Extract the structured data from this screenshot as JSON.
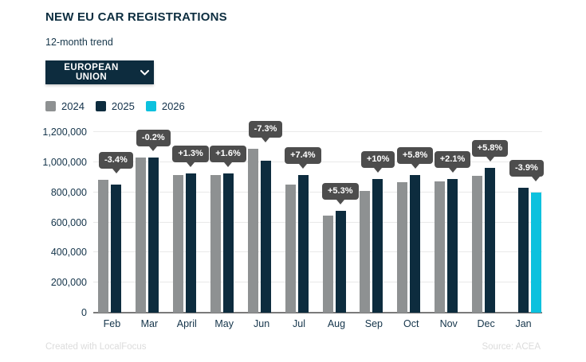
{
  "header": {
    "title": "NEW EU CAR REGISTRATIONS",
    "subtitle": "12-month trend",
    "region_selector": {
      "label": "EUROPEAN UNION",
      "icon": "chevron-down-icon"
    }
  },
  "legend": [
    {
      "label": "2024",
      "color": "#8e9192"
    },
    {
      "label": "2025",
      "color": "#0d2c3e"
    },
    {
      "label": "2026",
      "color": "#0cc1de"
    }
  ],
  "footer": {
    "credit": "Created with LocalFocus",
    "source": "Source: ACEA"
  },
  "chart_data": {
    "type": "bar",
    "title": "NEW EU CAR REGISTRATIONS",
    "subtitle": "12-month trend",
    "categories": [
      "Feb",
      "Mar",
      "April",
      "May",
      "Jun",
      "Jul",
      "Aug",
      "Sep",
      "Oct",
      "Nov",
      "Dec",
      "Jan"
    ],
    "series": [
      {
        "name": "2024",
        "color": "#8e9192",
        "values": [
          883000,
          1032000,
          914000,
          912000,
          1090000,
          852000,
          644000,
          809000,
          866000,
          870000,
          911000,
          null
        ]
      },
      {
        "name": "2025",
        "color": "#0d2c3e",
        "values": [
          853000,
          1030000,
          925000,
          926000,
          1010000,
          915000,
          678000,
          889000,
          917000,
          888000,
          963000,
          831000
        ]
      },
      {
        "name": "2026",
        "color": "#0cc1de",
        "values": [
          null,
          null,
          null,
          null,
          null,
          null,
          null,
          null,
          null,
          null,
          null,
          799000
        ]
      }
    ],
    "change_labels": [
      "-3.4%",
      "-0.2%",
      "+1.3%",
      "+1.6%",
      "-7.3%",
      "+7.4%",
      "+5.3%",
      "+10%",
      "+5.8%",
      "+2.1%",
      "+5.8%",
      "-3.9%"
    ],
    "ylim": [
      0,
      1200000
    ],
    "yticks": [
      {
        "value": 0,
        "label": "0"
      },
      {
        "value": 200000,
        "label": "200,000"
      },
      {
        "value": 400000,
        "label": "400,000"
      },
      {
        "value": 600000,
        "label": "600,000"
      },
      {
        "value": 800000,
        "label": "800,000"
      },
      {
        "value": 1000000,
        "label": "1,000,000"
      },
      {
        "value": 1200000,
        "label": "1,200,000"
      }
    ],
    "grid": "horizontal",
    "legend_position": "top-left",
    "label_bubble_color": "#4d4d4d"
  }
}
